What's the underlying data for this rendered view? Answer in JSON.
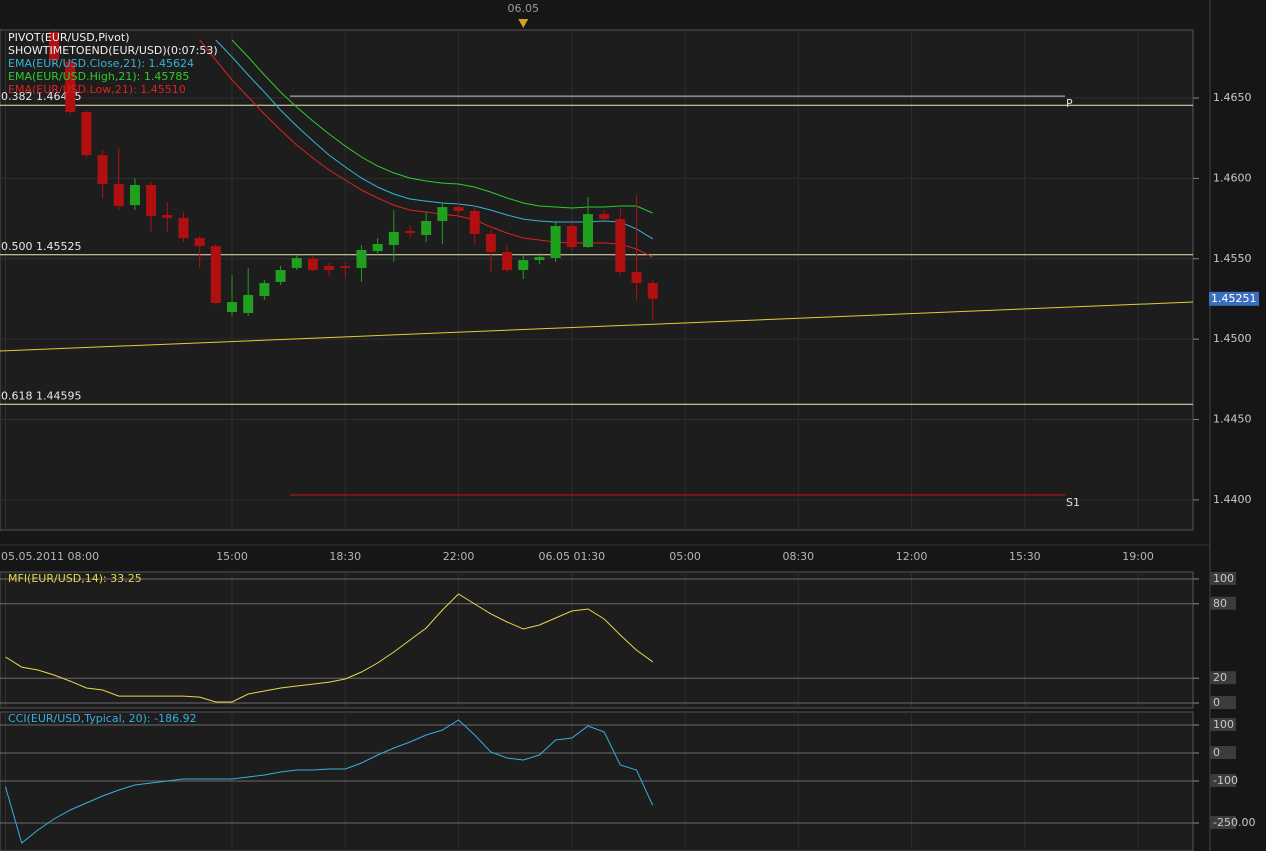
{
  "chart_data": [
    {
      "type": "candlestick",
      "indicators": [
        "PIVOT(EUR/USD,Pivot)",
        "SHOWTIMETOEND(EUR/USD)(0:07:53)"
      ],
      "day_marker": "06.05",
      "categories": [
        "05.05.2011 08:00",
        null,
        null,
        null,
        null,
        null,
        null,
        null,
        null,
        null,
        null,
        null,
        null,
        null,
        "15:00",
        null,
        null,
        null,
        null,
        null,
        null,
        "18:30",
        null,
        null,
        null,
        null,
        null,
        null,
        "22:00",
        null,
        null,
        null,
        null,
        null,
        null,
        "06.05 01:30",
        null,
        null,
        null,
        null,
        null,
        null,
        "05:00",
        null,
        null,
        null,
        null,
        null,
        null,
        "08:30",
        null,
        null,
        null,
        null,
        null,
        null,
        "12:00",
        null,
        null,
        null,
        null,
        null,
        null,
        "15:30",
        null,
        null,
        null,
        null,
        null,
        null,
        "19:00",
        null,
        null,
        null
      ],
      "open": [
        null,
        null,
        null,
        1.46911,
        1.46724,
        1.46413,
        1.46145,
        1.45965,
        1.45834,
        1.45959,
        1.45772,
        1.45754,
        1.45629,
        1.45579,
        1.45169,
        1.45163,
        1.45268,
        1.45356,
        1.45443,
        1.45499,
        1.45455,
        1.45455,
        1.45443,
        1.45548,
        1.45586,
        1.45673,
        1.45648,
        1.45735,
        1.45822,
        1.45797,
        1.45654,
        1.45542,
        1.4543,
        1.45492,
        1.45505,
        1.45704,
        1.45573,
        1.45778,
        1.45747,
        1.45418,
        1.45349,
        null,
        null,
        null,
        null,
        null,
        null,
        null,
        null,
        null,
        null,
        null,
        null,
        null,
        null,
        null,
        null,
        null,
        null,
        null,
        null,
        null,
        null,
        null,
        null,
        null,
        null,
        null,
        null,
        null,
        null,
        null,
        null,
        null
      ],
      "high": [
        null,
        null,
        null,
        1.46923,
        1.46736,
        1.46425,
        1.46177,
        1.46189,
        1.46002,
        1.45978,
        1.45853,
        1.45791,
        1.45642,
        1.45592,
        1.45399,
        1.45443,
        1.45368,
        1.45455,
        1.45523,
        1.45517,
        1.45474,
        1.4548,
        1.45586,
        1.45629,
        1.45803,
        1.4571,
        1.45791,
        1.45847,
        1.45847,
        1.45834,
        1.45679,
        1.45586,
        1.45523,
        1.45536,
        1.45729,
        1.45729,
        1.45884,
        1.45803,
        1.45816,
        1.45897,
        1.45368,
        null,
        null,
        null,
        null,
        null,
        null,
        null,
        null,
        null,
        null,
        null,
        null,
        null,
        null,
        null,
        null,
        null,
        null,
        null,
        null,
        null,
        null,
        null,
        null,
        null,
        null,
        null,
        null,
        null,
        null,
        null,
        null,
        null
      ],
      "low": [
        null,
        null,
        null,
        1.46705,
        1.46394,
        1.46127,
        1.45878,
        1.45803,
        1.45803,
        1.45667,
        1.45667,
        1.45604,
        1.45443,
        1.45213,
        1.45144,
        1.45144,
        1.45244,
        1.45337,
        1.4543,
        1.45424,
        1.45393,
        1.4538,
        1.45356,
        1.45523,
        1.4548,
        1.45629,
        1.45604,
        1.45592,
        1.45766,
        1.45586,
        1.45418,
        1.45418,
        1.45374,
        1.45467,
        1.4548,
        1.45555,
        1.45567,
        1.45741,
        1.45399,
        1.45244,
        1.45119,
        null,
        null,
        null,
        null,
        null,
        null,
        null,
        null,
        null,
        null,
        null,
        null,
        null,
        null,
        null,
        null,
        null,
        null,
        null,
        null,
        null,
        null,
        null,
        null,
        null,
        null,
        null,
        null,
        null,
        null,
        null,
        null,
        null
      ],
      "close": [
        null,
        null,
        null,
        1.46736,
        1.46413,
        1.46145,
        1.45965,
        1.45828,
        1.45959,
        1.45766,
        1.45754,
        1.45629,
        1.45579,
        1.45225,
        1.45231,
        1.45275,
        1.45349,
        1.4543,
        1.45505,
        1.4543,
        1.4543,
        1.45443,
        1.45555,
        1.45592,
        1.45667,
        1.4566,
        1.45735,
        1.45822,
        1.45797,
        1.45654,
        1.45542,
        1.4543,
        1.45492,
        1.45511,
        1.45704,
        1.45573,
        1.45778,
        1.45747,
        1.45418,
        1.45349,
        1.45251,
        null,
        null,
        null,
        null,
        null,
        null,
        null,
        null,
        null,
        null,
        null,
        null,
        null,
        null,
        null,
        null,
        null,
        null,
        null,
        null,
        null,
        null,
        null,
        null,
        null,
        null,
        null,
        null,
        null,
        null,
        null,
        null,
        null
      ],
      "up_color": "#1fa01f",
      "down_color": "#b01010",
      "series": [
        {
          "name": "EMA(EUR/USD.Close,21): 1.45624",
          "color": "#33b5d5",
          "values": [
            null,
            null,
            null,
            null,
            null,
            null,
            null,
            null,
            null,
            null,
            null,
            null,
            null,
            1.46861,
            1.46755,
            1.46643,
            1.46537,
            1.46425,
            1.46326,
            1.46233,
            1.46145,
            1.46071,
            1.46002,
            1.45946,
            1.45903,
            1.45872,
            1.45859,
            1.45847,
            1.45841,
            1.45828,
            1.45803,
            1.45772,
            1.45747,
            1.45735,
            1.45729,
            1.45729,
            1.45729,
            1.45735,
            1.45729,
            1.45685,
            1.45624,
            null,
            null,
            null,
            null,
            null,
            null,
            null,
            null,
            null,
            null,
            null,
            null,
            null,
            null,
            null,
            null,
            null,
            null,
            null,
            null,
            null,
            null,
            null,
            null,
            null,
            null,
            null,
            null,
            null,
            null,
            null,
            null,
            null
          ]
        },
        {
          "name": "EMA(EUR/USD.High,21): 1.45785",
          "color": "#2ecc2e",
          "values": [
            null,
            null,
            null,
            null,
            null,
            null,
            null,
            null,
            null,
            null,
            null,
            null,
            null,
            null,
            1.46861,
            1.46755,
            1.46643,
            1.46537,
            1.46444,
            1.46357,
            1.46276,
            1.46201,
            1.46133,
            1.46077,
            1.46034,
            1.46002,
            1.45984,
            1.45971,
            1.45965,
            1.45946,
            1.45915,
            1.45878,
            1.45847,
            1.45828,
            1.45822,
            1.45816,
            1.45822,
            1.45822,
            1.45828,
            1.45828,
            1.45785,
            null,
            null,
            null,
            null,
            null,
            null,
            null,
            null,
            null,
            null,
            null,
            null,
            null,
            null,
            null,
            null,
            null,
            null,
            null,
            null,
            null,
            null,
            null,
            null,
            null,
            null,
            null,
            null,
            null,
            null,
            null,
            null,
            null
          ]
        },
        {
          "name": "EMA(EUR/USD.Low,21): 1.45510",
          "color": "#dd2222",
          "values": [
            null,
            null,
            null,
            null,
            null,
            null,
            null,
            null,
            null,
            null,
            null,
            null,
            1.46861,
            1.46736,
            1.46612,
            1.46506,
            1.464,
            1.46301,
            1.46208,
            1.46127,
            1.46052,
            1.4599,
            1.45928,
            1.45878,
            1.45834,
            1.45803,
            1.45791,
            1.45778,
            1.45766,
            1.45741,
            1.45698,
            1.4566,
            1.45629,
            1.45617,
            1.45604,
            1.45598,
            1.45598,
            1.45598,
            1.45592,
            1.45561,
            1.4551,
            null,
            null,
            null,
            null,
            null,
            null,
            null,
            null,
            null,
            null,
            null,
            null,
            null,
            null,
            null,
            null,
            null,
            null,
            null,
            null,
            null,
            null,
            null,
            null,
            null,
            null,
            null,
            null,
            null,
            null,
            null,
            null,
            null
          ]
        }
      ],
      "fib_levels": [
        {
          "label": "0.382 1.46455",
          "value": 1.46455
        },
        {
          "label": "0.500 1.45525",
          "value": 1.45525
        },
        {
          "label": "0.618 1.44595",
          "value": 1.44595
        }
      ],
      "fib_color": "#f0eab8",
      "levels": [
        {
          "label": "P",
          "value": 1.46512,
          "color": "#cccccc"
        },
        {
          "label": "S1",
          "value": 1.44031,
          "color": "#cc1111"
        }
      ],
      "trendline": {
        "color": "#e0d030",
        "values": [
          1.44926,
          1.45231
        ]
      },
      "ylim": [
        1.43813,
        1.46923
      ],
      "yticks": [
        {
          "value": 1.44,
          "label": "1.4400"
        },
        {
          "value": 1.445,
          "label": "1.4450"
        },
        {
          "value": 1.45,
          "label": "1.4500"
        },
        {
          "value": 1.455,
          "label": "1.4550"
        },
        {
          "value": 1.46,
          "label": "1.4600"
        },
        {
          "value": 1.465,
          "label": "1.4650"
        }
      ],
      "grid": true
    },
    {
      "type": "line",
      "title": "MFI(EUR/USD,14): 33.25",
      "color": "#e6d84a",
      "values": [
        37.1,
        29.0,
        26.6,
        22.6,
        17.7,
        12.1,
        10.5,
        5.6,
        5.6,
        5.6,
        5.6,
        5.6,
        4.8,
        0.8,
        0.8,
        7.3,
        9.7,
        12.1,
        13.7,
        15.3,
        16.9,
        19.4,
        25.0,
        32.3,
        41.1,
        50.8,
        60.5,
        75.0,
        87.9,
        79.8,
        71.8,
        65.3,
        59.7,
        62.9,
        68.5,
        74.2,
        75.8,
        67.7,
        54.8,
        42.7,
        33.25,
        null,
        null,
        null,
        null,
        null,
        null,
        null,
        null,
        null,
        null,
        null,
        null,
        null,
        null,
        null,
        null,
        null,
        null,
        null,
        null,
        null,
        null,
        null,
        null,
        null,
        null,
        null,
        null,
        null,
        null,
        null,
        null,
        null
      ],
      "ylim": [
        -4,
        105.6
      ],
      "yticks": [
        0,
        20,
        80,
        100
      ],
      "grid": true
    },
    {
      "type": "line",
      "title": "CCI(EUR/USD,Typical, 20): -186.92",
      "color": "#3aaee0",
      "values": [
        -121.4,
        -321.4,
        -275.0,
        -235.7,
        -203.6,
        -178.6,
        -153.6,
        -132.1,
        -114.3,
        -107.1,
        -100.0,
        -92.9,
        -92.9,
        -92.9,
        -92.9,
        -85.7,
        -78.6,
        -67.9,
        -60.7,
        -60.7,
        -57.1,
        -57.1,
        -35.7,
        -7.1,
        17.9,
        39.3,
        64.3,
        82.1,
        117.9,
        64.3,
        3.6,
        -17.9,
        -25.0,
        -7.1,
        46.4,
        53.6,
        96.4,
        75.0,
        -42.9,
        -60.7,
        -186.92,
        null,
        null,
        null,
        null,
        null,
        null,
        null,
        null,
        null,
        null,
        null,
        null,
        null,
        null,
        null,
        null,
        null,
        null,
        null,
        null,
        null,
        null,
        null,
        null,
        null,
        null,
        null,
        null,
        null,
        null,
        null,
        null,
        null
      ],
      "ylim": [
        -350,
        146.4
      ],
      "yticks": [
        {
          "value": -250,
          "label": "-250.00"
        },
        -100,
        0,
        100
      ],
      "grid": true
    }
  ]
}
